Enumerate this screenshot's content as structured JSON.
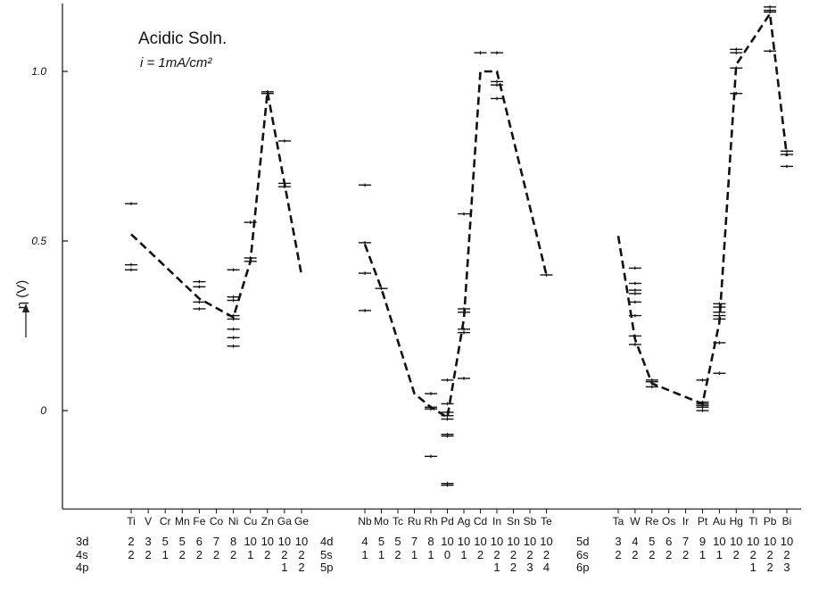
{
  "chart_data": {
    "type": "line",
    "title": "Acidic Soln.",
    "subtitle": "i = 1mA/cm²",
    "ylabel": "η (V)",
    "ylim": [
      -0.29,
      1.2
    ],
    "yticks": [
      {
        "value": 0,
        "label": "0"
      },
      {
        "value": 0.5,
        "label": "0.5"
      },
      {
        "value": 1.0,
        "label": "1.0"
      }
    ],
    "line_style": "dashed",
    "groups": [
      {
        "elements": [
          "Ti",
          "V",
          "Cr",
          "Mn",
          "Fe",
          "Co",
          "Ni",
          "Cu",
          "Zn",
          "Ga",
          "Ge"
        ],
        "config_rows": [
          {
            "label": "3d",
            "values": [
              "2",
              "3",
              "5",
              "5",
              "6",
              "7",
              "8",
              "10",
              "10",
              "10",
              "10"
            ]
          },
          {
            "label": "4s",
            "values": [
              "2",
              "2",
              "1",
              "2",
              "2",
              "2",
              "2",
              "1",
              "2",
              "2",
              "2"
            ]
          },
          {
            "label": "4p",
            "values": [
              "",
              "",
              "",
              "",
              "",
              "",
              "",
              "",
              "",
              "1",
              "2"
            ]
          }
        ],
        "trend": [
          {
            "el": "Ti",
            "y": 0.52
          },
          {
            "el": "Fe",
            "y": 0.33
          },
          {
            "el": "Ni",
            "y": 0.275
          },
          {
            "el": "Cu",
            "y": 0.44
          },
          {
            "el": "Zn",
            "y": 0.94
          },
          {
            "el": "Ga",
            "y": 0.67
          },
          {
            "el": "Ge",
            "y": 0.4
          }
        ],
        "measurements": [
          {
            "el": "Ti",
            "y": [
              0.61,
              0.43,
              0.415
            ]
          },
          {
            "el": "Fe",
            "y": [
              0.38,
              0.365,
              0.32,
              0.3
            ]
          },
          {
            "el": "Ni",
            "y": [
              0.415,
              0.335,
              0.325,
              0.28,
              0.27,
              0.24,
              0.215,
              0.19
            ]
          },
          {
            "el": "Cu",
            "y": [
              0.555,
              0.45,
              0.44
            ]
          },
          {
            "el": "Zn",
            "y": [
              0.94,
              0.935
            ]
          },
          {
            "el": "Ga",
            "y": [
              0.795,
              0.67,
              0.66
            ]
          }
        ]
      },
      {
        "elements": [
          "Nb",
          "Mo",
          "Tc",
          "Ru",
          "Rh",
          "Pd",
          "Ag",
          "Cd",
          "In",
          "Sn",
          "Sb",
          "Te"
        ],
        "config_rows": [
          {
            "label": "4d",
            "values": [
              "4",
              "5",
              "5",
              "7",
              "8",
              "10",
              "10",
              "10",
              "10",
              "10",
              "10",
              "10"
            ]
          },
          {
            "label": "5s",
            "values": [
              "1",
              "1",
              "2",
              "1",
              "1",
              "0",
              "1",
              "2",
              "2",
              "2",
              "2",
              "2"
            ]
          },
          {
            "label": "5p",
            "values": [
              "",
              "",
              "",
              "",
              "",
              "",
              "",
              "",
              "1",
              "2",
              "3",
              "4"
            ]
          }
        ],
        "trend": [
          {
            "el": "Nb",
            "y": 0.49
          },
          {
            "el": "Mo",
            "y": 0.36
          },
          {
            "el": "Ru",
            "y": 0.05
          },
          {
            "el": "Rh",
            "y": 0.01
          },
          {
            "el": "Pd",
            "y": -0.02
          },
          {
            "el": "Ag",
            "y": 0.27
          },
          {
            "el": "Cd",
            "y": 1.0
          },
          {
            "el": "In",
            "y": 1.0
          },
          {
            "el": "Te",
            "y": 0.4
          }
        ],
        "measurements": [
          {
            "el": "Nb",
            "y": [
              0.665,
              0.495,
              0.405,
              0.295
            ]
          },
          {
            "el": "Mo",
            "y": [
              0.36
            ]
          },
          {
            "el": "Rh",
            "y": [
              0.05,
              0.01,
              0.005,
              -0.135
            ]
          },
          {
            "el": "Pd",
            "y": [
              0.09,
              0.02,
              -0.005,
              -0.015,
              -0.025,
              -0.07,
              -0.075,
              -0.215,
              -0.22
            ]
          },
          {
            "el": "Ag",
            "y": [
              0.58,
              0.3,
              0.29,
              0.24,
              0.23,
              0.095
            ]
          },
          {
            "el": "Cd",
            "y": [
              1.055
            ]
          },
          {
            "el": "In",
            "y": [
              1.055,
              0.97,
              0.96,
              0.92
            ]
          },
          {
            "el": "Te",
            "y": [
              0.4
            ]
          }
        ]
      },
      {
        "elements": [
          "Ta",
          "W",
          "Re",
          "Os",
          "Ir",
          "Pt",
          "Au",
          "Hg",
          "Tl",
          "Pb",
          "Bi"
        ],
        "config_rows": [
          {
            "label": "5d",
            "values": [
              "3",
              "4",
              "5",
              "6",
              "7",
              "9",
              "10",
              "10",
              "10",
              "10",
              "10"
            ]
          },
          {
            "label": "6s",
            "values": [
              "2",
              "2",
              "2",
              "2",
              "2",
              "1",
              "1",
              "2",
              "2",
              "2",
              "2"
            ]
          },
          {
            "label": "6p",
            "values": [
              "",
              "",
              "",
              "",
              "",
              "",
              "",
              "",
              "1",
              "2",
              "3"
            ]
          }
        ],
        "trend": [
          {
            "el": "Ta",
            "y": 0.515
          },
          {
            "el": "W",
            "y": 0.21
          },
          {
            "el": "Re",
            "y": 0.08
          },
          {
            "el": "Pt",
            "y": 0.02
          },
          {
            "el": "Au",
            "y": 0.26
          },
          {
            "el": "Hg",
            "y": 1.02
          },
          {
            "el": "Pb",
            "y": 1.17
          },
          {
            "el": "Bi",
            "y": 0.75
          }
        ],
        "measurements": [
          {
            "el": "W",
            "y": [
              0.42,
              0.375,
              0.355,
              0.345,
              0.32,
              0.28,
              0.22,
              0.195
            ]
          },
          {
            "el": "Re",
            "y": [
              0.09,
              0.085,
              0.07
            ]
          },
          {
            "el": "Pt",
            "y": [
              0.09,
              0.025,
              0.02,
              0.015,
              0.01,
              0.0
            ]
          },
          {
            "el": "Au",
            "y": [
              0.315,
              0.305,
              0.29,
              0.28,
              0.27,
              0.2,
              0.11
            ]
          },
          {
            "el": "Hg",
            "y": [
              1.065,
              1.055,
              1.01,
              0.935
            ]
          },
          {
            "el": "Pb",
            "y": [
              1.19,
              1.18,
              1.175,
              1.06
            ]
          },
          {
            "el": "Bi",
            "y": [
              0.765,
              0.755,
              0.72
            ]
          }
        ]
      }
    ]
  }
}
